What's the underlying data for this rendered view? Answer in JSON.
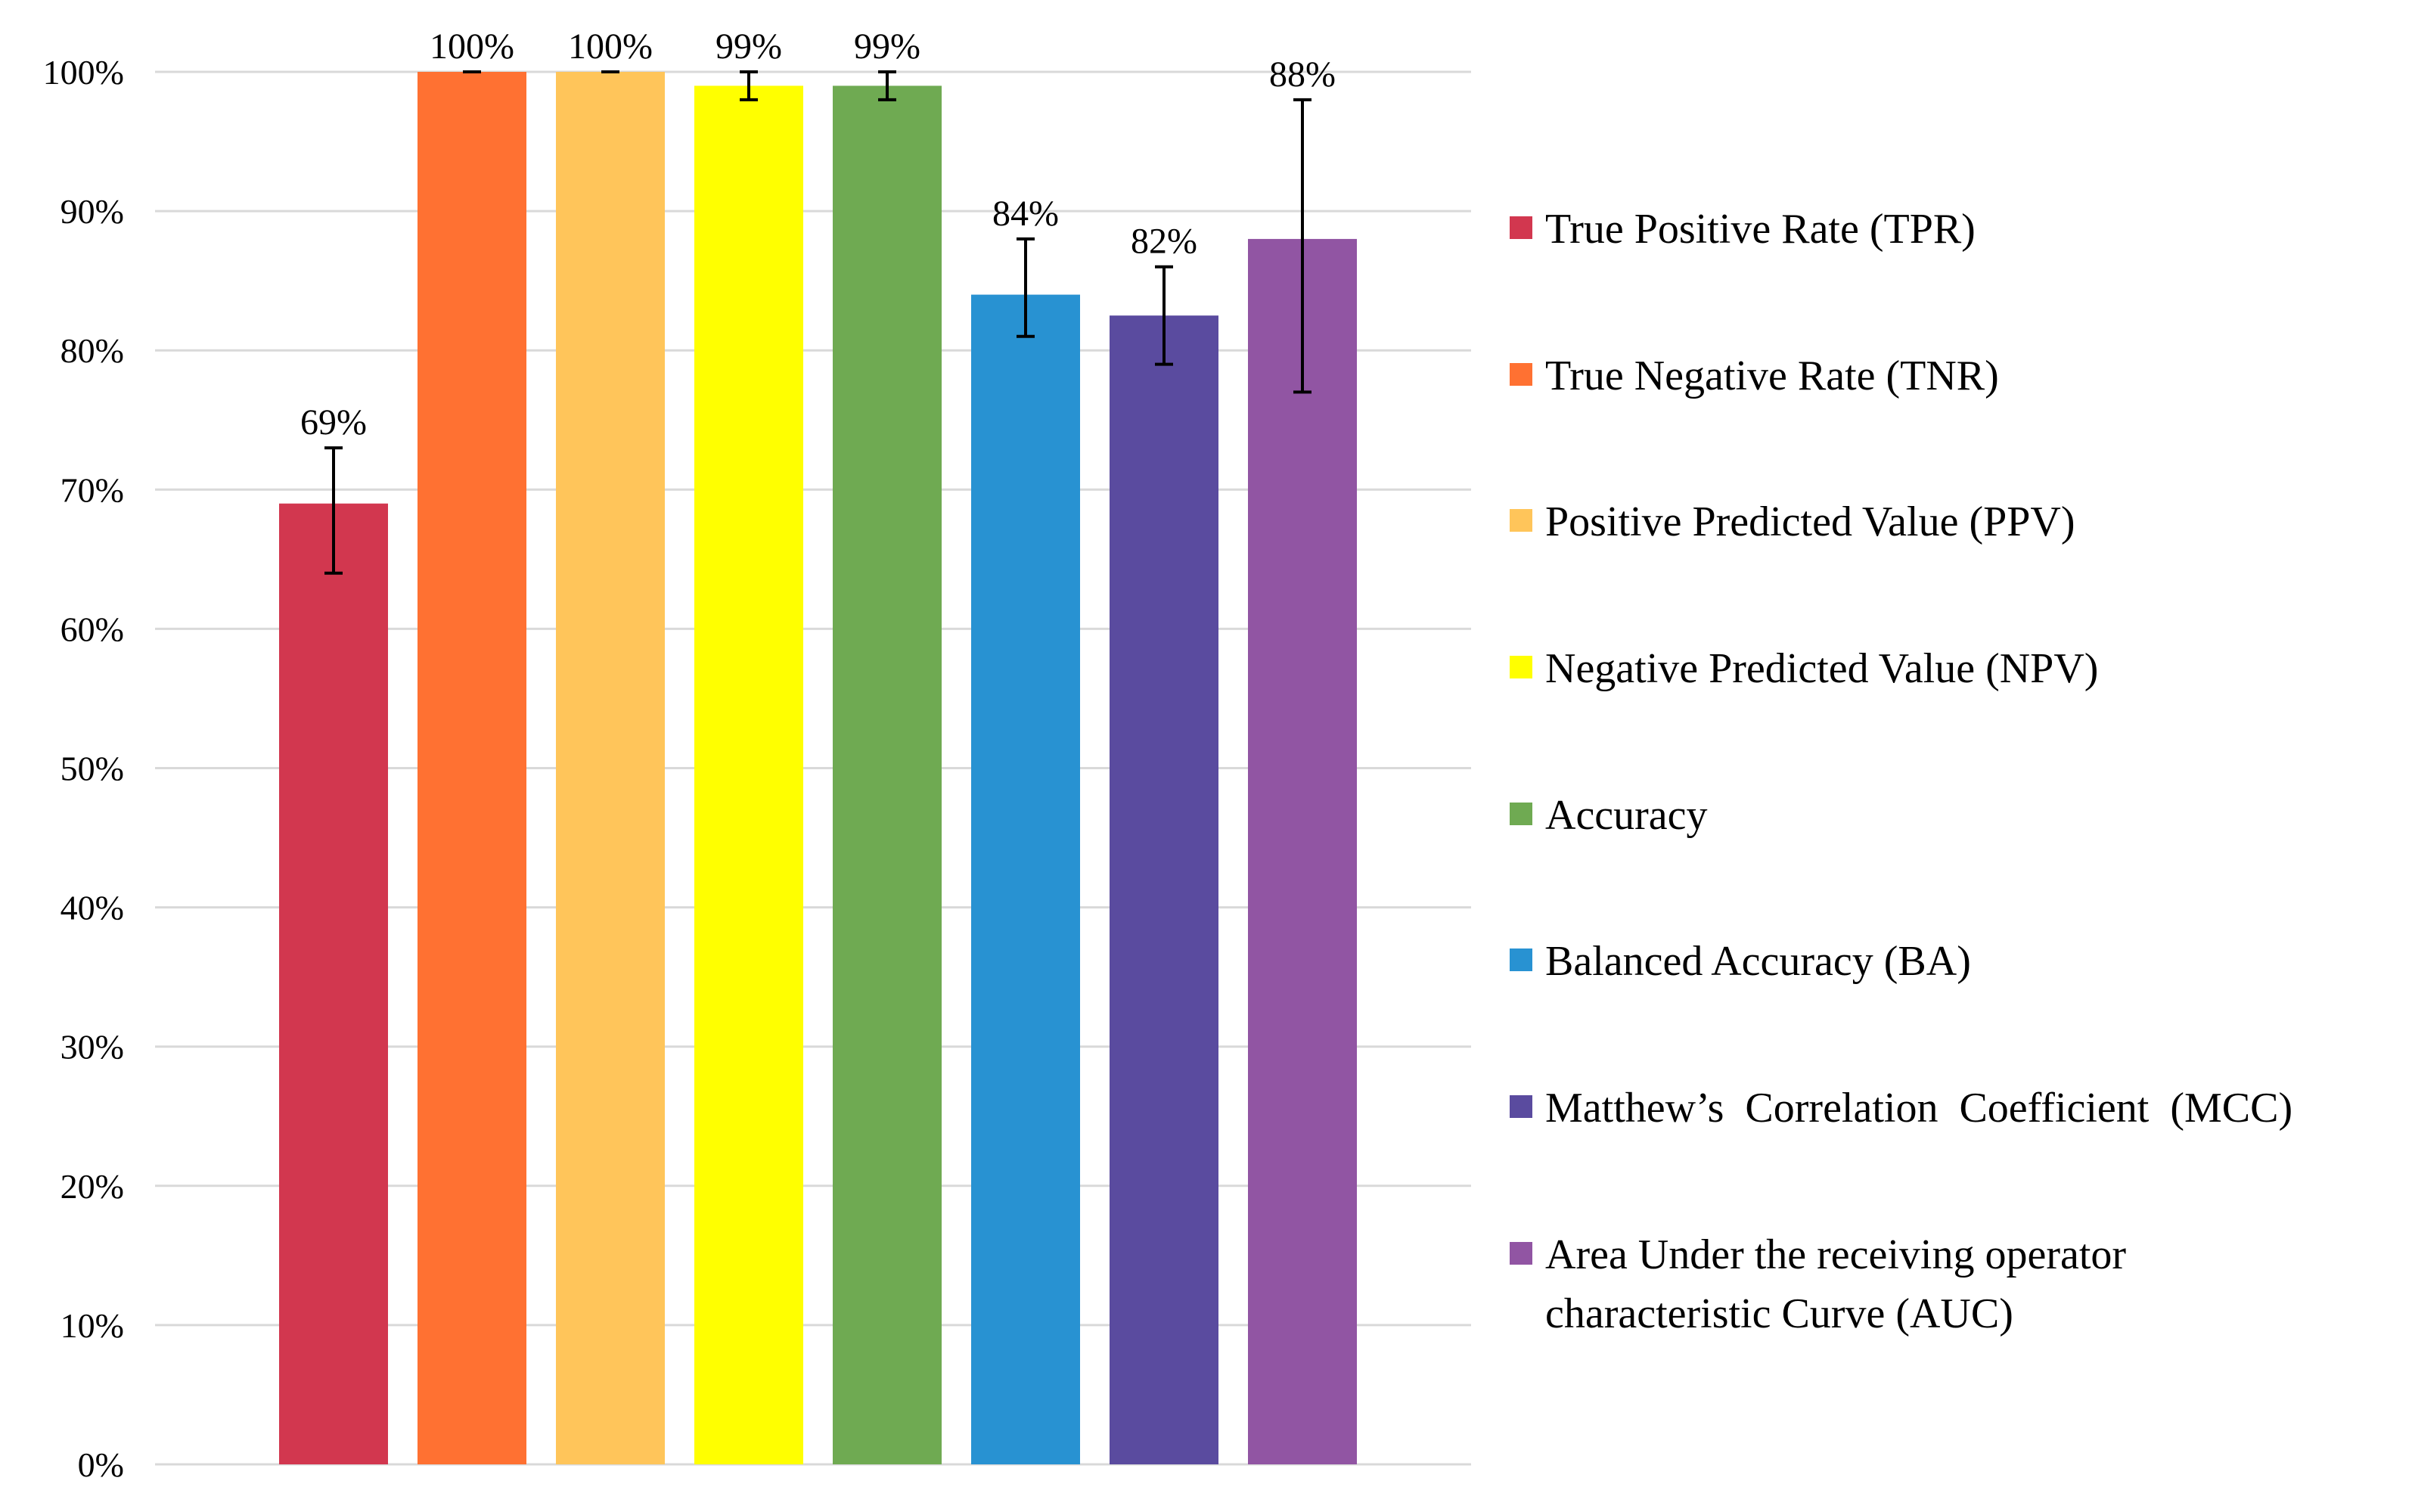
{
  "chart_data": {
    "type": "bar",
    "categories": [
      "True Positive Rate (TPR)",
      "True Negative Rate (TNR)",
      "Positive Predicted Value (PPV)",
      "Negative Predicted Value (NPV)",
      "Accuracy",
      "Balanced Accuracy (BA)",
      "Matthew’s  Correlation  Coefficient  (MCC)",
      "Area Under the receiving operator characteristic Curve (AUC)"
    ],
    "legend_lines": [
      [
        "True Positive Rate (TPR)"
      ],
      [
        "True Negative Rate (TNR)"
      ],
      [
        "Positive Predicted Value (PPV)"
      ],
      [
        "Negative Predicted Value (NPV)"
      ],
      [
        "Accuracy"
      ],
      [
        "Balanced Accuracy (BA)"
      ],
      [
        "Matthew’s  Correlation  Coefficient  (MCC)"
      ],
      [
        "Area Under the receiving operator",
        "characteristic Curve (AUC)"
      ]
    ],
    "values": [
      0.69,
      1.0,
      1.0,
      0.99,
      0.99,
      0.84,
      0.825,
      0.88
    ],
    "error_low": [
      0.64,
      1.0,
      1.0,
      0.98,
      0.98,
      0.81,
      0.79,
      0.77
    ],
    "error_high": [
      0.73,
      1.0,
      1.0,
      1.0,
      1.0,
      0.88,
      0.86,
      0.98
    ],
    "data_labels": [
      "69%",
      "100%",
      "100%",
      "99%",
      "99%",
      "84%",
      "82%",
      "88%"
    ],
    "colors": [
      "#d2374f",
      "#ff7132",
      "#ffc55a",
      "#ffff00",
      "#6faa52",
      "#2892d2",
      "#5a4b9f",
      "#9155a3"
    ],
    "y_ticks": [
      {
        "value": 0.0,
        "label": "0%"
      },
      {
        "value": 0.1,
        "label": "10%"
      },
      {
        "value": 0.2,
        "label": "20%"
      },
      {
        "value": 0.3,
        "label": "30%"
      },
      {
        "value": 0.4,
        "label": "40%"
      },
      {
        "value": 0.5,
        "label": "50%"
      },
      {
        "value": 0.6,
        "label": "60%"
      },
      {
        "value": 0.7,
        "label": "70%"
      },
      {
        "value": 0.8,
        "label": "80%"
      },
      {
        "value": 0.9,
        "label": "90%"
      },
      {
        "value": 1.0,
        "label": "100%"
      }
    ],
    "ylim": [
      0,
      1
    ],
    "grid": true,
    "gridline_color": "#d9d9d9",
    "legend_position": "right"
  }
}
